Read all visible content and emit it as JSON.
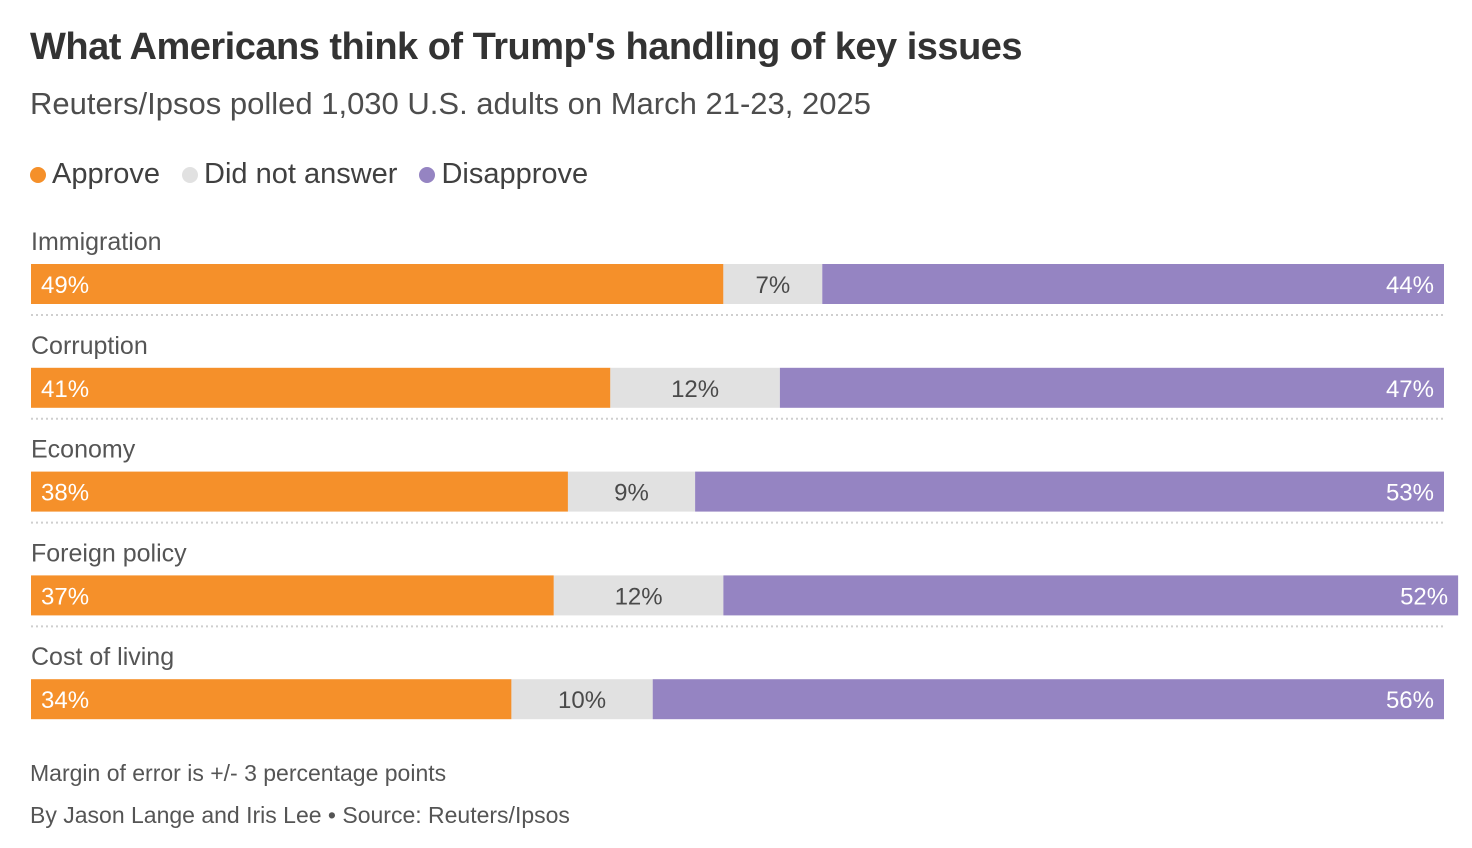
{
  "header": {
    "title": "What Americans think of Trump's handling of key issues",
    "subtitle": "Reuters/Ipsos polled 1,030 U.S. adults on March 21-23, 2025"
  },
  "legend": [
    {
      "label": "Approve",
      "color": "#f5902a"
    },
    {
      "label": "Did not answer",
      "color": "#e1e1e1"
    },
    {
      "label": "Disapprove",
      "color": "#9584c2"
    }
  ],
  "chart_data": {
    "type": "bar",
    "orientation": "horizontal",
    "stacked": true,
    "categories": [
      "Immigration",
      "Corruption",
      "Economy",
      "Foreign policy",
      "Cost of living"
    ],
    "series": [
      {
        "name": "Approve",
        "values": [
          49,
          41,
          38,
          37,
          34
        ],
        "labels": [
          "49%",
          "41%",
          "38%",
          "37%",
          "34%"
        ],
        "color": "#f5902a"
      },
      {
        "name": "Did not answer",
        "values": [
          7,
          12,
          9,
          12,
          10
        ],
        "labels": [
          "7%",
          "12%",
          "9%",
          "12%",
          "10%"
        ],
        "color": "#e1e1e1"
      },
      {
        "name": "Disapprove",
        "values": [
          44,
          47,
          53,
          52,
          56
        ],
        "labels": [
          "44%",
          "47%",
          "53%",
          "52%",
          "56%"
        ],
        "color": "#9584c2"
      }
    ],
    "xlim": [
      0,
      100
    ],
    "legend_position": "top-left"
  },
  "footer": {
    "note": "Margin of error is +/- 3 percentage points",
    "credit": "By Jason Lange and Iris Lee • Source: Reuters/Ipsos"
  }
}
